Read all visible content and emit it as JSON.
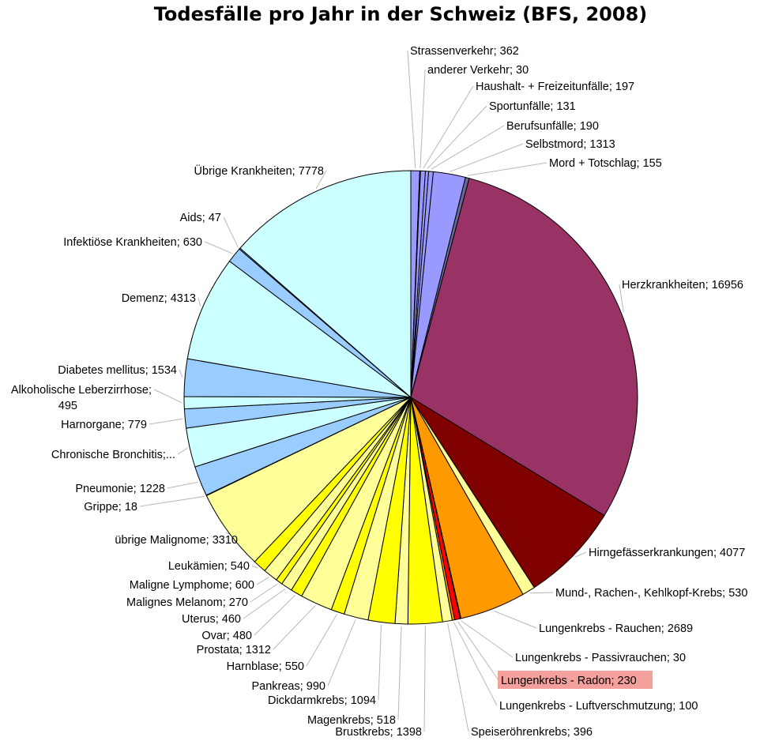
{
  "chart_data": {
    "type": "pie",
    "title": "Todesfälle pro Jahr in der Schweiz (BFS, 2008)",
    "start": "top",
    "direction": "clockwise",
    "slices": [
      {
        "label": "Strassenverkehr; 362",
        "value": 362,
        "color": "#9999ff"
      },
      {
        "label": "anderer Verkehr; 30",
        "value": 30,
        "color": "#9999ff"
      },
      {
        "label": "Haushalt- + Freizeitunfälle; 197",
        "value": 197,
        "color": "#9999ff"
      },
      {
        "label": "Sportunfälle; 131",
        "value": 131,
        "color": "#9999ff"
      },
      {
        "label": "Berufsunfälle; 190",
        "value": 190,
        "color": "#9999ff"
      },
      {
        "label": "Selbstmord; 1313",
        "value": 1313,
        "color": "#9999ff"
      },
      {
        "label": "Mord + Totschlag; 155",
        "value": 155,
        "color": "#666699"
      },
      {
        "label": "Herzkrankheiten; 16956",
        "value": 16956,
        "color": "#993366"
      },
      {
        "label": "Hirngefässerkrankungen; 4077",
        "value": 4077,
        "color": "#800000"
      },
      {
        "label": "Mund-, Rachen-, Kehlkopf-Krebs; 530",
        "value": 530,
        "color": "#ffff99"
      },
      {
        "label": "Lungenkrebs - Rauchen; 2689",
        "value": 2689,
        "color": "#ff9900"
      },
      {
        "label": "Lungenkrebs - Passivrauchen; 30",
        "value": 30,
        "color": "#ff9900"
      },
      {
        "label": "Lungenkrebs - Radon; 230",
        "value": 230,
        "color": "#ff0000",
        "highlight": "#f4a09c"
      },
      {
        "label": "Lungenkrebs - Luftverschmutzung; 100",
        "value": 100,
        "color": "#ff9900"
      },
      {
        "label": "Speiseröhrenkrebs; 396",
        "value": 396,
        "color": "#ffff99"
      },
      {
        "label": "Brustkrebs; 1398",
        "value": 1398,
        "color": "#ffff00"
      },
      {
        "label": "Magenkrebs; 518",
        "value": 518,
        "color": "#ffff99"
      },
      {
        "label": "Dickdarmkrebs; 1094",
        "value": 1094,
        "color": "#ffff00"
      },
      {
        "label": "Pankreas; 990",
        "value": 990,
        "color": "#ffff99"
      },
      {
        "label": "Harnblase; 550",
        "value": 550,
        "color": "#ffff00"
      },
      {
        "label": "Prostata; 1312",
        "value": 1312,
        "color": "#ffff99"
      },
      {
        "label": "Ovar; 480",
        "value": 480,
        "color": "#ffff00"
      },
      {
        "label": "Uterus; 460",
        "value": 460,
        "color": "#ffff99"
      },
      {
        "label": "Malignes Melanom; 270",
        "value": 270,
        "color": "#ffff00"
      },
      {
        "label": "Maligne Lymphome; 600",
        "value": 600,
        "color": "#ffff99"
      },
      {
        "label": "Leukämien; 540",
        "value": 540,
        "color": "#ffff00"
      },
      {
        "label": "übrige Malignome; 3310",
        "value": 3310,
        "color": "#ffff99"
      },
      {
        "label": "Grippe; 18",
        "value": 18,
        "color": "#99ccff"
      },
      {
        "label": "Pneumonie; 1228",
        "value": 1228,
        "color": "#99ccff"
      },
      {
        "label": "Chronische Bronchitis;...",
        "value": 1600,
        "color": "#ccffff"
      },
      {
        "label": "Harnorgane; 779",
        "value": 779,
        "color": "#99ccff"
      },
      {
        "label": "Alkoholische Leberzirrhose; 495",
        "value": 495,
        "color": "#ccffff"
      },
      {
        "label": "Diabetes mellitus; 1534",
        "value": 1534,
        "color": "#99ccff"
      },
      {
        "label": "Demenz; 4313",
        "value": 4313,
        "color": "#ccffff"
      },
      {
        "label": "Infektiöse Krankheiten; 630",
        "value": 630,
        "color": "#99ccff"
      },
      {
        "label": "Aids; 47",
        "value": 47,
        "color": "#99ccff"
      },
      {
        "label": "Übrige Krankheiten; 7778",
        "value": 7778,
        "color": "#ccffff"
      }
    ]
  }
}
